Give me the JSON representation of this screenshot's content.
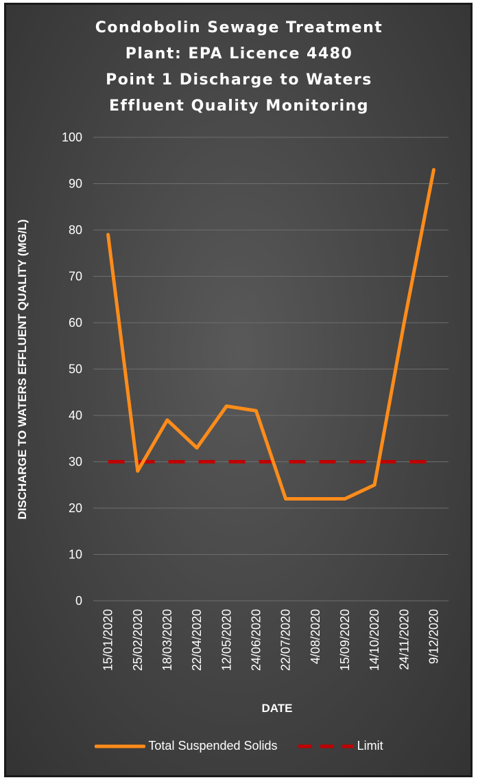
{
  "chart_data": {
    "type": "line",
    "title_lines": [
      "Condobolin Sewage Treatment",
      "Plant: EPA Licence 4480",
      "Point 1 Discharge to Waters",
      "Effluent Quality Monitoring"
    ],
    "xlabel": "DATE",
    "ylabel": "DISCHARGE TO WATERS EFFLUENT QUALITY (MG/L)",
    "ylim": [
      0,
      100
    ],
    "yticks": [
      "0",
      "10",
      "20",
      "30",
      "40",
      "50",
      "60",
      "70",
      "80",
      "90",
      "100"
    ],
    "categories": [
      "15/01/2020",
      "25/02/2020",
      "18/03/2020",
      "22/04/2020",
      "12/05/2020",
      "24/06/2020",
      "22/07/2020",
      "4/08/2020",
      "15/09/2020",
      "14/10/2020",
      "24/11/2020",
      "9/12/2020"
    ],
    "series": [
      {
        "name": "Total Suspended Solids",
        "values": [
          79,
          28,
          39,
          33,
          42,
          41,
          22,
          22,
          22,
          25,
          60,
          93
        ],
        "color": "#ff8c1a",
        "style": "solid"
      },
      {
        "name": "Limit",
        "values": [
          30,
          30,
          30,
          30,
          30,
          30,
          30,
          30,
          30,
          30,
          30,
          30
        ],
        "color": "#c00000",
        "style": "dashed"
      }
    ],
    "grid": true,
    "legend_position": "bottom"
  }
}
